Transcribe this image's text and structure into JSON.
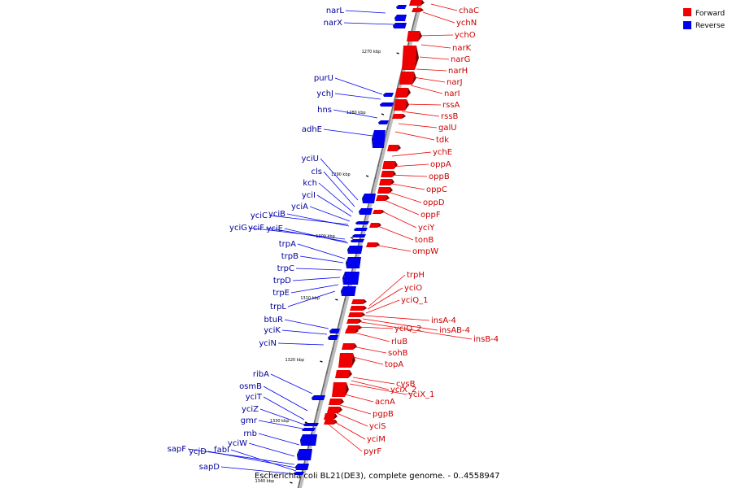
{
  "caption": "Escherichia coli BL21(DE3), complete genome. - 0..4558947",
  "legend": [
    {
      "label": "Forward",
      "color": "#ee0000"
    },
    {
      "label": "Reverse",
      "color": "#0000ee"
    }
  ],
  "ticks": [
    "1270 kbp",
    "1280 kbp",
    "1290 kbp",
    "1300 kbp",
    "1310 kbp",
    "1320 kbp",
    "1330 kbp",
    "1340 kbp"
  ],
  "forward_genes": [
    "chaC",
    "ychN",
    "ychO",
    "narK",
    "narG",
    "narH",
    "narJ",
    "narI",
    "rssA",
    "rssB",
    "galU",
    "tdk",
    "ychE",
    "oppA",
    "oppB",
    "oppC",
    "oppD",
    "oppF",
    "yciY",
    "tonB",
    "ompW",
    "trpH",
    "yciO",
    "yciQ_1",
    "insA-4",
    "insAB-4",
    "insB-4",
    "yciQ_2",
    "rluB",
    "sohB",
    "topA",
    "cysB",
    "yciX_2",
    "yciX_1",
    "acnA",
    "pgpB",
    "yciS",
    "yciM",
    "pyrF"
  ],
  "reverse_genes": [
    "narL",
    "narX",
    "purU",
    "ychJ",
    "hns",
    "adhE",
    "yciU",
    "cls",
    "kch",
    "yciI",
    "yciA",
    "yciC",
    "yciB",
    "yciG",
    "yciF",
    "yciE",
    "trpA",
    "trpB",
    "trpC",
    "trpD",
    "trpE",
    "trpL",
    "btuR",
    "yciK",
    "yciN",
    "ribA",
    "osmB",
    "yciT",
    "yciZ",
    "gmr",
    "rnb",
    "yciW",
    "sapF",
    "ycjD",
    "fabI",
    "sapD"
  ]
}
